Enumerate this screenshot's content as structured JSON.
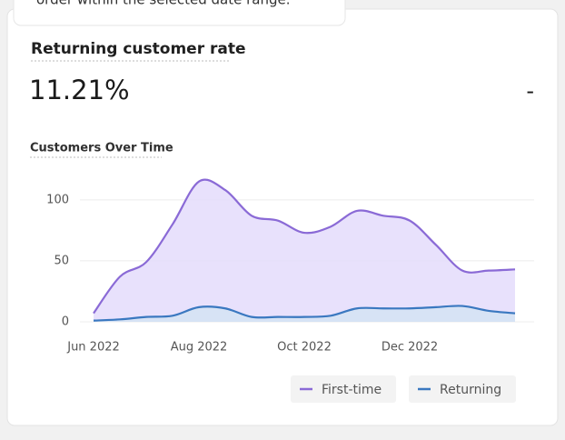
{
  "tooltip": {
    "text": "order within the selected date range."
  },
  "card": {
    "title": "Returning customer rate",
    "value": "11.21%",
    "change": "-"
  },
  "chart_data": {
    "type": "area",
    "title": "Customers Over Time",
    "categories": [
      "Jun 2022",
      null,
      null,
      null,
      "Aug 2022",
      null,
      null,
      null,
      "Oct 2022",
      null,
      null,
      null,
      "Dec 2022",
      null,
      null,
      null,
      null
    ],
    "series": [
      {
        "name": "First-time",
        "color": "#8a6ad6",
        "fill": "#e4dcfb",
        "values": [
          7,
          37,
          49,
          80,
          115,
          108,
          87,
          83,
          73,
          78,
          91,
          87,
          83,
          63,
          42,
          42,
          43
        ]
      },
      {
        "name": "Returning",
        "color": "#3a78c0",
        "fill": "#d3e3f3",
        "values": [
          1,
          2,
          4,
          5,
          12,
          11,
          4,
          4,
          4,
          5,
          11,
          11,
          11,
          12,
          13,
          9,
          7
        ]
      }
    ],
    "ylim": [
      0,
      120
    ],
    "yticks": [
      0,
      50,
      100
    ],
    "grid": true
  }
}
